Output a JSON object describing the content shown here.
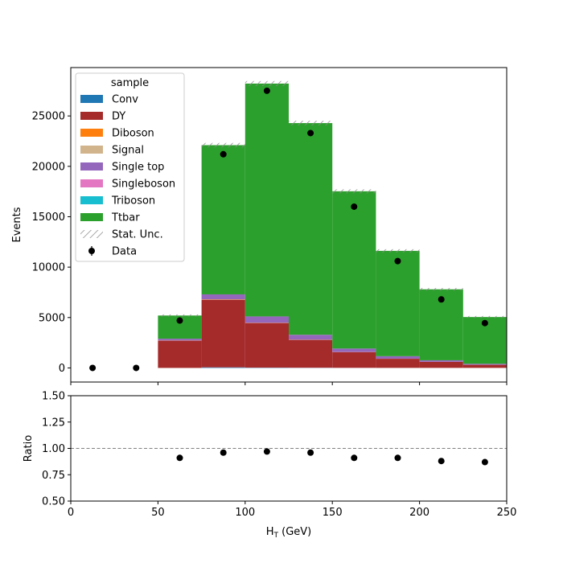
{
  "chart_data": {
    "type": "bar",
    "xlabel": "H",
    "xlabel_sub": "T",
    "xlabel_unit": " (GeV)",
    "main": {
      "ylabel": "Events",
      "ylim": [
        -1400,
        29800
      ],
      "yticks": [
        0,
        5000,
        10000,
        15000,
        20000,
        25000
      ],
      "grid": false,
      "legend_placement": "top-left",
      "legend_title": "sample"
    },
    "xlim": [
      0,
      250
    ],
    "xticks": [
      0,
      50,
      100,
      150,
      200,
      250
    ],
    "bin_edges": [
      0,
      25,
      50,
      75,
      100,
      125,
      150,
      175,
      200,
      225,
      250
    ],
    "series": [
      {
        "name": "Conv",
        "color": "#1f77b4",
        "values": [
          0,
          0,
          0,
          60,
          30,
          20,
          10,
          5,
          5,
          5
        ]
      },
      {
        "name": "DY",
        "color": "#a52a2a",
        "values": [
          0,
          0,
          2700,
          6700,
          4400,
          2750,
          1550,
          900,
          600,
          300
        ]
      },
      {
        "name": "Diboson",
        "color": "#ff7f0e",
        "values": [
          0,
          0,
          20,
          40,
          30,
          20,
          15,
          10,
          5,
          5
        ]
      },
      {
        "name": "Signal",
        "color": "#d2b48c",
        "values": [
          0,
          0,
          0,
          0,
          0,
          0,
          0,
          0,
          0,
          0
        ]
      },
      {
        "name": "Single top",
        "color": "#9467bd",
        "values": [
          0,
          0,
          180,
          500,
          650,
          500,
          350,
          250,
          150,
          100
        ]
      },
      {
        "name": "Singleboson",
        "color": "#e377c2",
        "values": [
          0,
          0,
          0,
          0,
          0,
          0,
          0,
          0,
          0,
          0
        ]
      },
      {
        "name": "Triboson",
        "color": "#17becf",
        "values": [
          0,
          0,
          0,
          0,
          0,
          0,
          0,
          0,
          0,
          0
        ]
      },
      {
        "name": "Ttbar",
        "color": "#2ca02c",
        "values": [
          0,
          0,
          2300,
          14800,
          23100,
          21000,
          15600,
          10450,
          7040,
          4640
        ]
      }
    ],
    "stat_unc_label": "Stat. Unc.",
    "data": {
      "name": "Data",
      "x": [
        12.5,
        37.5,
        62.5,
        87.5,
        112.5,
        137.5,
        162.5,
        187.5,
        212.5,
        237.5
      ],
      "y": [
        0,
        0,
        4700,
        21200,
        27500,
        23300,
        16000,
        10600,
        6800,
        4450
      ]
    },
    "ratio": {
      "ylabel": "Ratio",
      "ylim": [
        0.5,
        1.5
      ],
      "yticks": [
        "0.50",
        "0.75",
        "1.00",
        "1.25",
        "1.50"
      ],
      "reference_line": 1.0,
      "x": [
        62.5,
        87.5,
        112.5,
        137.5,
        162.5,
        187.5,
        212.5,
        237.5
      ],
      "y": [
        0.91,
        0.96,
        0.97,
        0.96,
        0.91,
        0.91,
        0.88,
        0.87
      ]
    },
    "colors": {
      "hatch": "#8a8a8a",
      "data_marker": "#000000",
      "reference_line": "#808080"
    }
  }
}
